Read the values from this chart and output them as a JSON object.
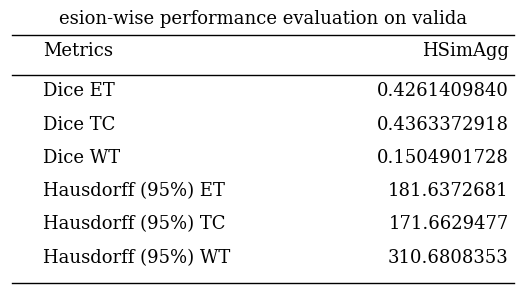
{
  "title": "esion-wise performance evaluation on valida",
  "col_headers": [
    "Metrics",
    "HSimAgg"
  ],
  "rows": [
    [
      "Dice ET",
      "0.4261409840"
    ],
    [
      "Dice TC",
      "0.4363372918"
    ],
    [
      "Dice WT",
      "0.1504901728"
    ],
    [
      "Hausdorff (95%) ET",
      "181.6372681"
    ],
    [
      "Hausdorff (95%) TC",
      "171.6629477"
    ],
    [
      "Hausdorff (95%) WT",
      "310.6808353"
    ]
  ],
  "font_size": 13,
  "title_font_size": 13,
  "bg_color": "#ffffff",
  "text_color": "#000000",
  "line_color": "#000000"
}
